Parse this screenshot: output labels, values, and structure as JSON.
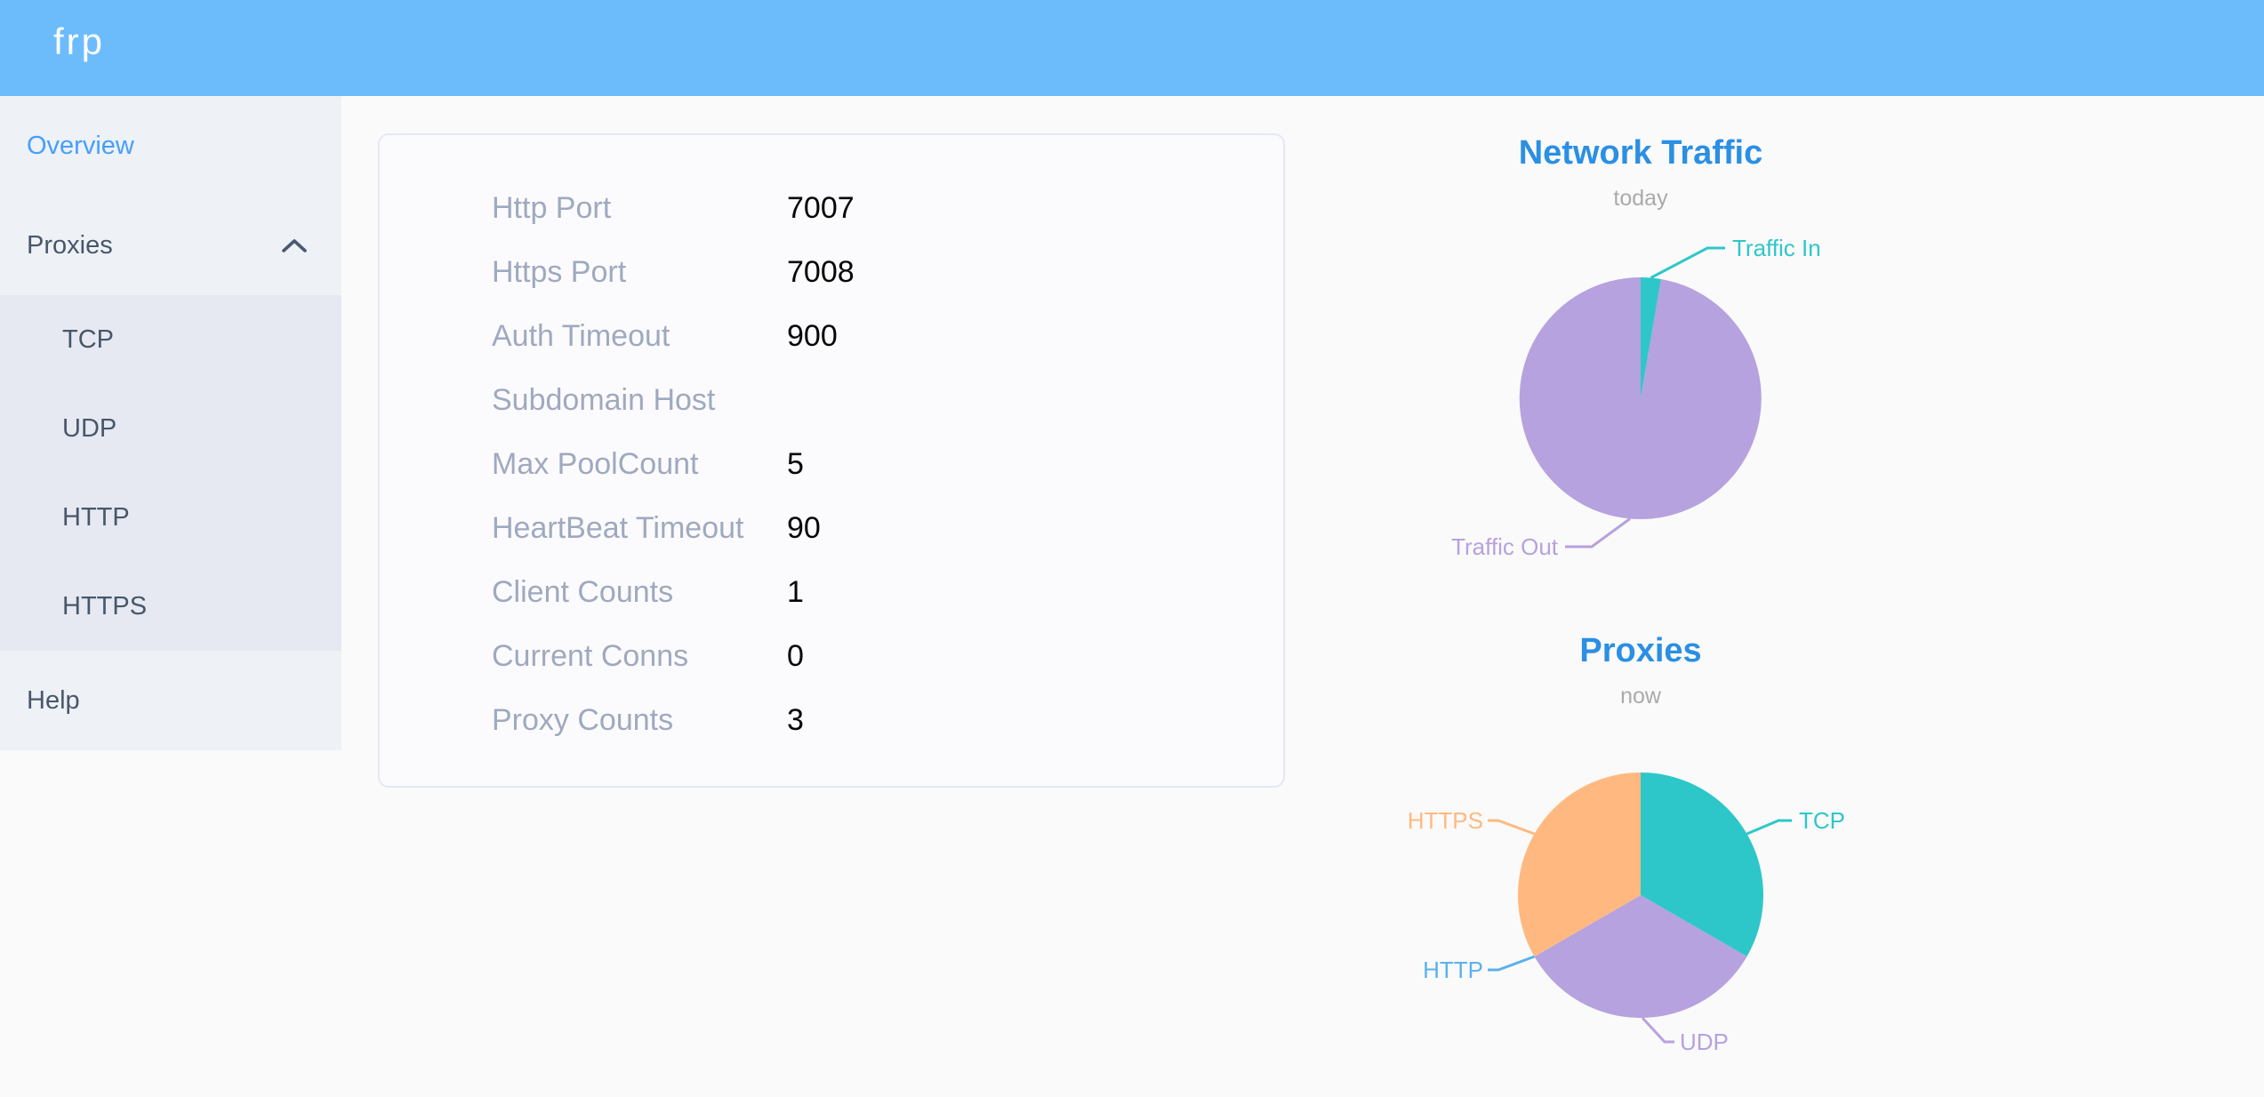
{
  "header": {
    "logo": "frp"
  },
  "sidebar": {
    "items": [
      {
        "label": "Overview",
        "active": true
      },
      {
        "label": "Proxies",
        "expanded": true,
        "children": [
          "TCP",
          "UDP",
          "HTTP",
          "HTTPS"
        ]
      },
      {
        "label": "Help"
      }
    ]
  },
  "overview_card": {
    "rows": [
      {
        "label": "Http Port",
        "value": "7007"
      },
      {
        "label": "Https Port",
        "value": "7008"
      },
      {
        "label": "Auth Timeout",
        "value": "900"
      },
      {
        "label": "Subdomain Host",
        "value": ""
      },
      {
        "label": "Max PoolCount",
        "value": "5"
      },
      {
        "label": "HeartBeat Timeout",
        "value": "90"
      },
      {
        "label": "Client Counts",
        "value": "1"
      },
      {
        "label": "Current Conns",
        "value": "0"
      },
      {
        "label": "Proxy Counts",
        "value": "3"
      }
    ]
  },
  "chart_data": [
    {
      "type": "pie",
      "title": "Network Traffic",
      "subtitle": "today",
      "legend_position": "callout-labels",
      "slices": [
        {
          "name": "Traffic In",
          "value": 2.7,
          "color": "#2ec7c9"
        },
        {
          "name": "Traffic Out",
          "value": 97.3,
          "color": "#b6a2de"
        }
      ]
    },
    {
      "type": "pie",
      "title": "Proxies",
      "subtitle": "now",
      "legend_position": "callout-labels",
      "slices": [
        {
          "name": "TCP",
          "value": 1,
          "color": "#2ec7c9"
        },
        {
          "name": "UDP",
          "value": 1,
          "color": "#b6a2de"
        },
        {
          "name": "HTTP",
          "value": 0,
          "color": "#5ab1ef"
        },
        {
          "name": "HTTPS",
          "value": 1,
          "color": "#ffb980"
        }
      ]
    }
  ],
  "theme": {
    "header_bg": "#6cbcfc",
    "sidebar_bg": "#eef1f6",
    "submenu_bg": "#e6e9f2",
    "page_bg": "#fafafa",
    "active_menu_color": "#459ffd",
    "menu_text_color": "#48576a",
    "config_label_color": "#9fa9bf",
    "chart_title_color": "#2b8fe3",
    "chart_subtitle_color": "#aaaaaa"
  }
}
